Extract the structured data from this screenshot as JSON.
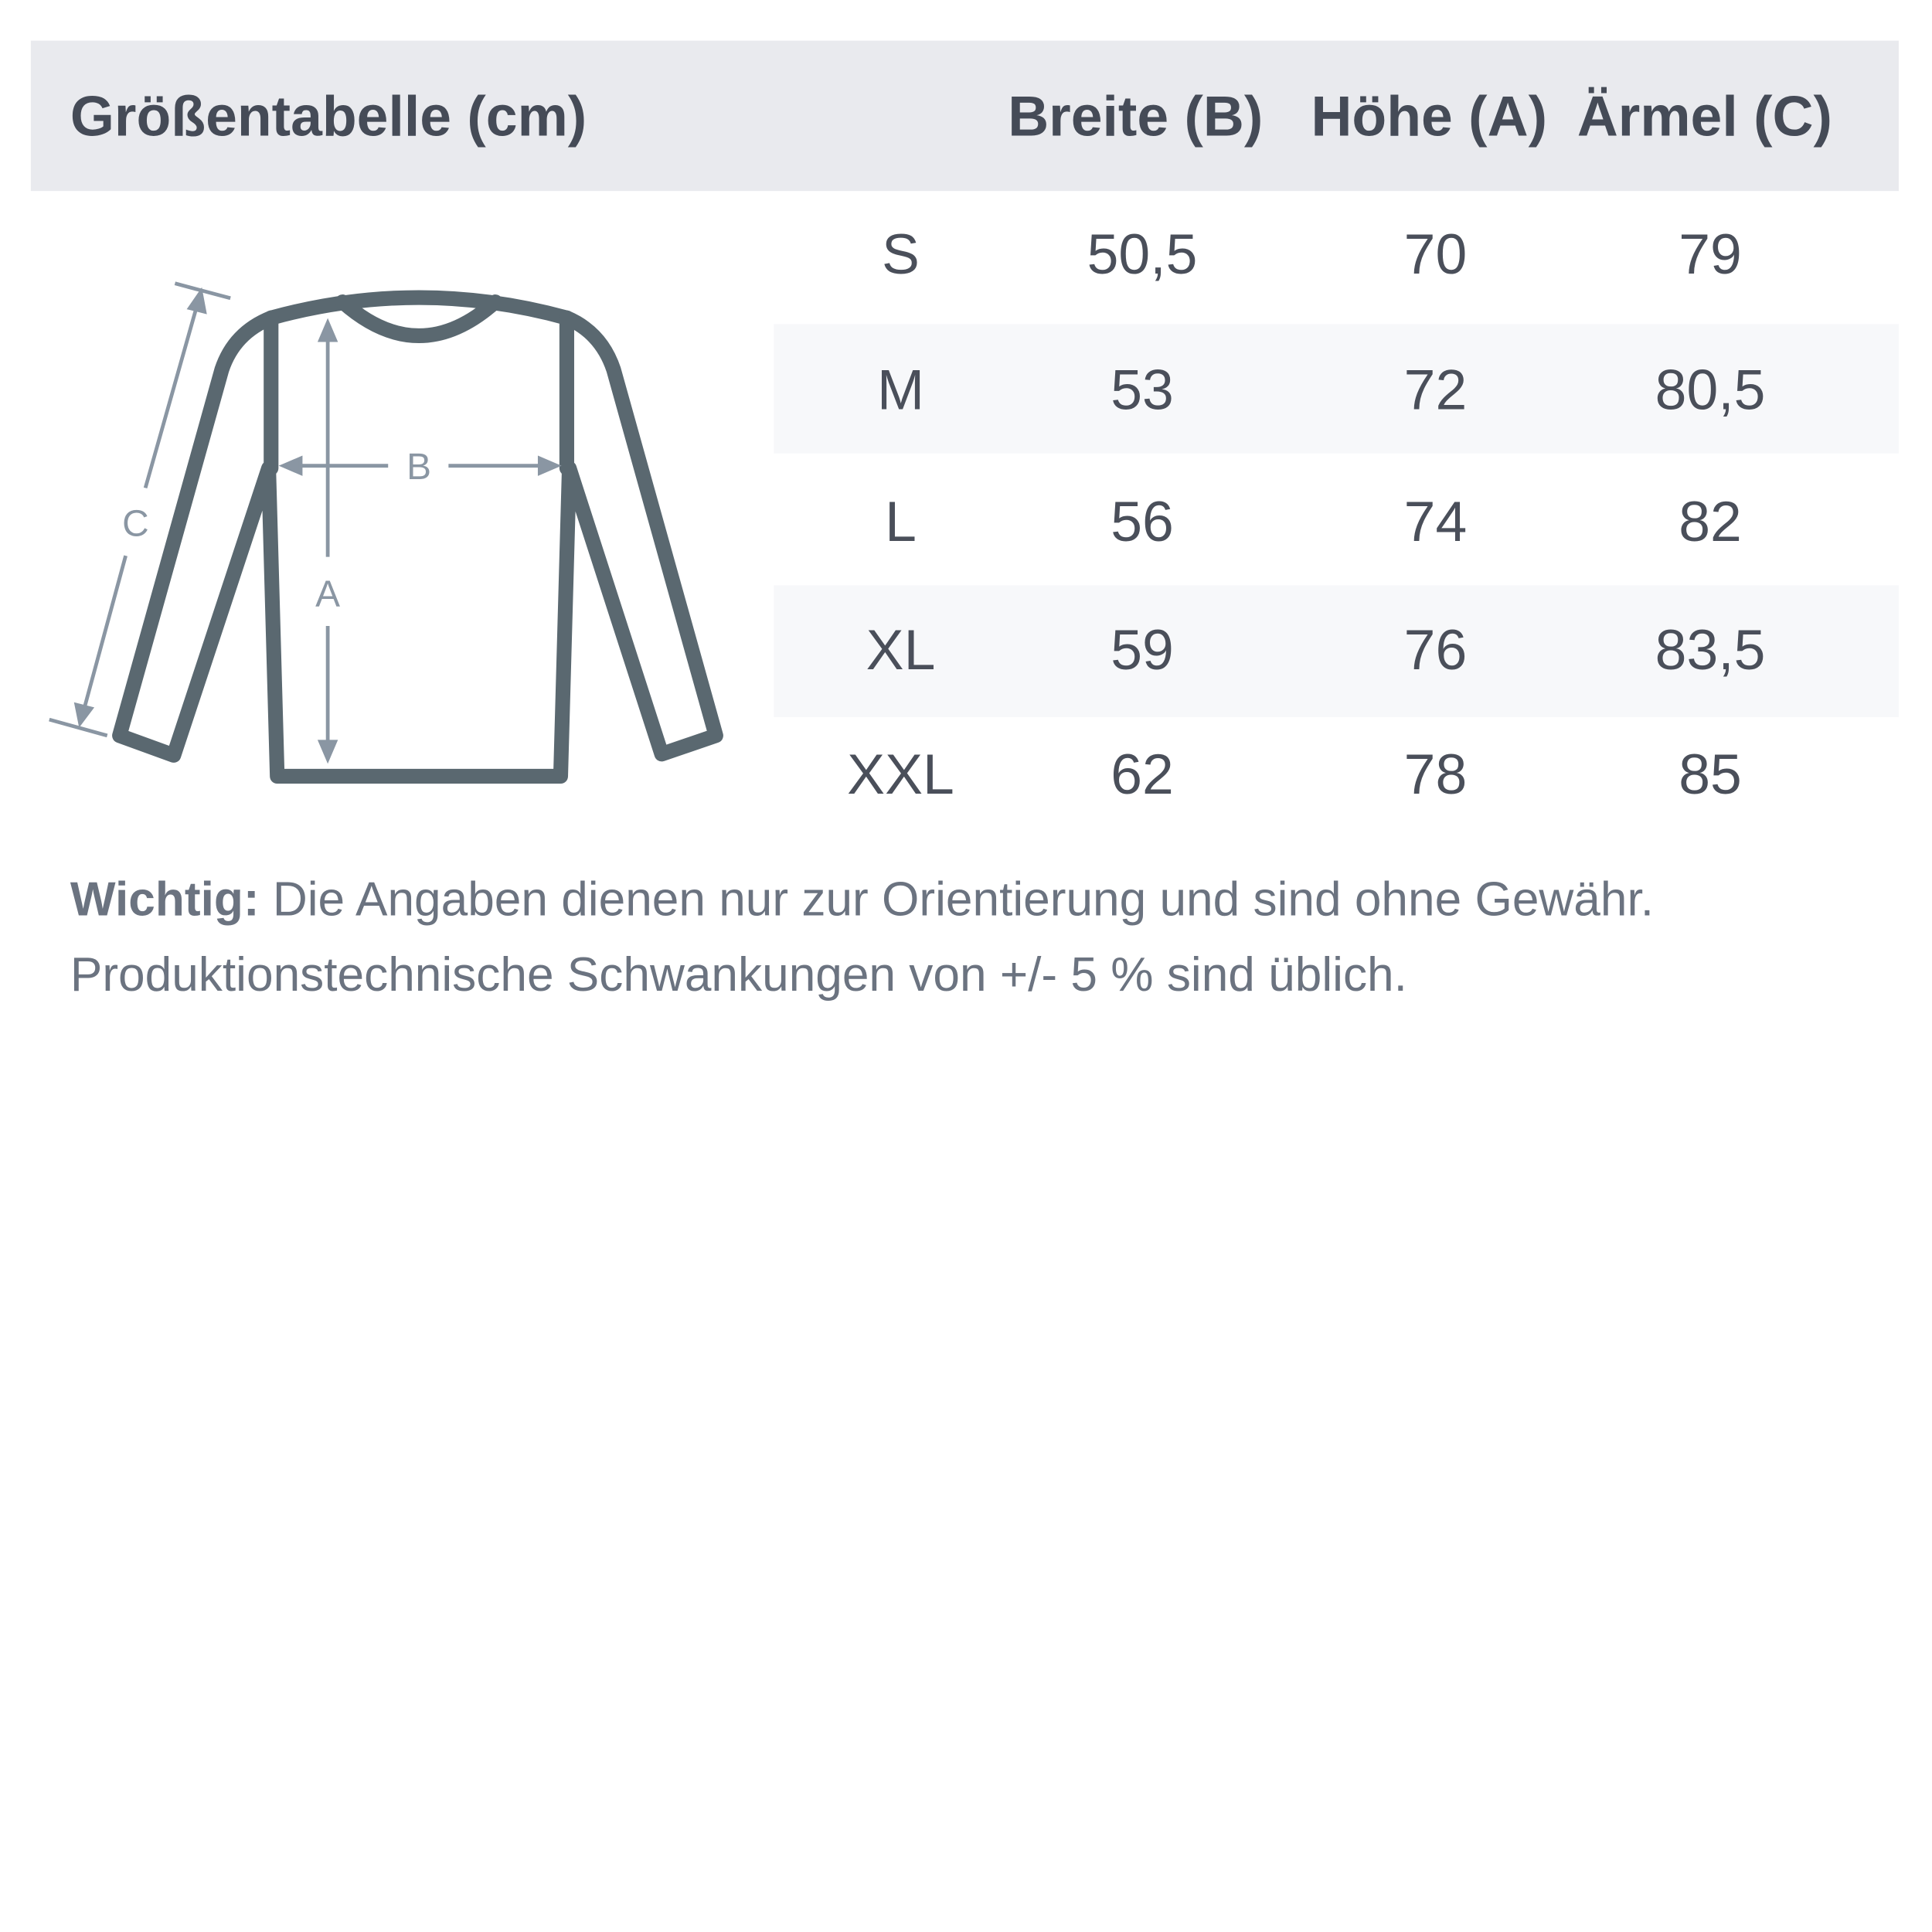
{
  "header": {
    "title": "Größentabelle (cm)",
    "columns": [
      "Breite (B)",
      "Höhe (A)",
      "Ärmel (C)"
    ]
  },
  "diagram": {
    "labels": {
      "a": "A",
      "b": "B",
      "c": "C"
    },
    "colors": {
      "outline": "#5a6870",
      "arrows": "#8a96a3"
    }
  },
  "rows": [
    {
      "size": "S",
      "breite": "50,5",
      "hoehe": "70",
      "aermel": "79"
    },
    {
      "size": "M",
      "breite": "53",
      "hoehe": "72",
      "aermel": "80,5"
    },
    {
      "size": "L",
      "breite": "56",
      "hoehe": "74",
      "aermel": "82"
    },
    {
      "size": "XL",
      "breite": "59",
      "hoehe": "76",
      "aermel": "83,5"
    },
    {
      "size": "XXL",
      "breite": "62",
      "hoehe": "78",
      "aermel": "85"
    }
  ],
  "note": {
    "label": "Wichtig:",
    "line1": " Die Angaben dienen nur zur Orientierung und sind ohne Gewähr.",
    "line2": "Produktionstechnische Schwankungen von +/- 5 % sind üblich."
  }
}
